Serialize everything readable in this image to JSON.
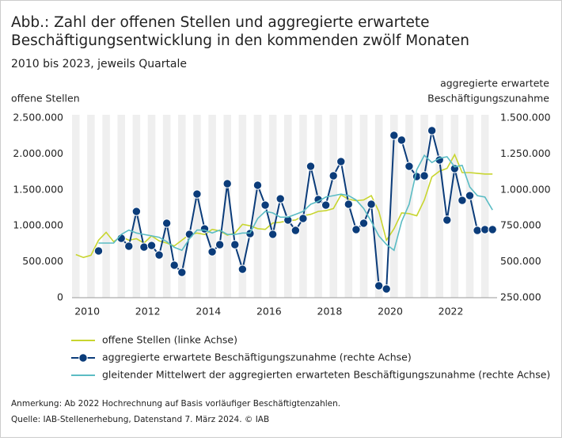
{
  "chart_data": {
    "type": "line",
    "title": [
      "Abb.: Zahl der offenen Stellen und aggregierte  erwartete",
      "Beschäftigungsentwicklung in den kommenden zwölf Monaten"
    ],
    "subtitle": "2010 bis 2023, jeweils Quartale",
    "y_label": "offene Stellen",
    "y2_label": [
      "aggregierte erwartete",
      "Beschäftigungszunahme"
    ],
    "notes": [
      "Anmerkung: Ab 2022 Hochrechnung auf Basis vorläufiger Beschäftigtenzahlen.",
      "Quelle: IAB-Stellenerhebung, Datenstand 7. März 2024.  © IAB"
    ],
    "x": [
      2010.125,
      2010.375,
      2010.625,
      2010.875,
      2011.125,
      2011.375,
      2011.625,
      2011.875,
      2012.125,
      2012.375,
      2012.625,
      2012.875,
      2013.125,
      2013.375,
      2013.625,
      2013.875,
      2014.125,
      2014.375,
      2014.625,
      2014.875,
      2015.125,
      2015.375,
      2015.625,
      2015.875,
      2016.125,
      2016.375,
      2016.625,
      2016.875,
      2017.125,
      2017.375,
      2017.625,
      2017.875,
      2018.125,
      2018.375,
      2018.625,
      2018.875,
      2019.125,
      2019.375,
      2019.625,
      2019.875,
      2020.125,
      2020.375,
      2020.625,
      2020.875,
      2021.125,
      2021.375,
      2021.625,
      2021.875,
      2022.125,
      2022.375,
      2022.625,
      2022.875,
      2023.125,
      2023.375,
      2023.625,
      2023.875
    ],
    "xlim": [
      2010,
      2024
    ],
    "xticks": [
      {
        "value": 2010.5,
        "label": "2010"
      },
      {
        "value": 2012.5,
        "label": "2012"
      },
      {
        "value": 2014.5,
        "label": "2014"
      },
      {
        "value": 2016.5,
        "label": "2016"
      },
      {
        "value": 2018.5,
        "label": "2018"
      },
      {
        "value": 2020.5,
        "label": "2020"
      },
      {
        "value": 2022.5,
        "label": "2022"
      }
    ],
    "ylim": [
      0,
      2500000
    ],
    "yticks": [
      0,
      {
        "value": 500000,
        "label": "500.000"
      },
      {
        "value": 1000000,
        "label": "1.000.000"
      },
      {
        "value": 1500000,
        "label": "1.500.000"
      },
      {
        "value": 2000000,
        "label": "2.000.000"
      },
      {
        "value": 2500000,
        "label": "2.500.000"
      }
    ],
    "y2lim": [
      250000,
      1500000
    ],
    "y2ticks": [
      {
        "value": 250000,
        "label": "250.000"
      },
      {
        "value": 500000,
        "label": "500.000"
      },
      {
        "value": 750000,
        "label": "750.000"
      },
      {
        "value": 1000000,
        "label": "1.000.000"
      },
      {
        "value": 1250000,
        "label": "1.250.000"
      },
      {
        "value": 1500000,
        "label": "1.500.000"
      }
    ],
    "series": [
      {
        "name": "offene Stellen (linke Achse)",
        "color": "#c8d52f",
        "values": [
          600000,
          560000,
          590000,
          800000,
          910000,
          780000,
          850000,
          800000,
          820000,
          760000,
          860000,
          790000,
          760000,
          720000,
          800000,
          880000,
          900000,
          880000,
          950000,
          930000,
          870000,
          900000,
          1020000,
          1000000,
          960000,
          950000,
          1040000,
          1050000,
          1070000,
          1080000,
          1140000,
          1160000,
          1200000,
          1210000,
          1240000,
          1430000,
          1370000,
          1350000,
          1360000,
          1420000,
          1200000,
          800000,
          960000,
          1180000,
          1170000,
          1140000,
          1360000,
          1680000,
          1760000,
          1800000,
          1990000,
          1740000,
          1740000,
          1730000,
          1720000,
          1720000
        ]
      },
      {
        "name": "aggregierte erwartete Beschäftigungszunahme (rechte Achse)",
        "color": "#0b3c7a",
        "axis": "y2",
        "markers": true,
        "values": [
          null,
          null,
          null,
          575000,
          null,
          null,
          663000,
          608000,
          850000,
          602000,
          613000,
          547000,
          768000,
          476000,
          426000,
          691000,
          971000,
          729000,
          569000,
          619000,
          1043000,
          619000,
          448000,
          696000,
          1032000,
          894000,
          691000,
          938000,
          790000,
          718000,
          801000,
          1164000,
          933000,
          894000,
          1098000,
          1197000,
          900000,
          724000,
          768000,
          900000,
          333000,
          311000,
          1379000,
          1346000,
          1164000,
          1093000,
          1098000,
          1412000,
          1208000,
          790000,
          1148000,
          927000,
          960000,
          718000,
          724000,
          724000
        ]
      },
      {
        "name": "gleitender Mittelwert der aggregierten erwarteten Beschäftigungszunahme (rechte Achse)",
        "color": "#5bbcc4",
        "axis": "y2",
        "values": [
          null,
          null,
          null,
          630000,
          630000,
          630000,
          690000,
          720000,
          700000,
          690000,
          680000,
          670000,
          640000,
          600000,
          580000,
          660000,
          720000,
          720000,
          700000,
          720000,
          690000,
          690000,
          700000,
          700000,
          800000,
          850000,
          840000,
          810000,
          810000,
          830000,
          850000,
          900000,
          920000,
          950000,
          960000,
          970000,
          960000,
          930000,
          870000,
          780000,
          680000,
          620000,
          580000,
          780000,
          900000,
          1140000,
          1240000,
          1190000,
          1220000,
          1230000,
          1160000,
          1170000,
          1020000,
          960000,
          950000,
          860000
        ]
      }
    ]
  }
}
